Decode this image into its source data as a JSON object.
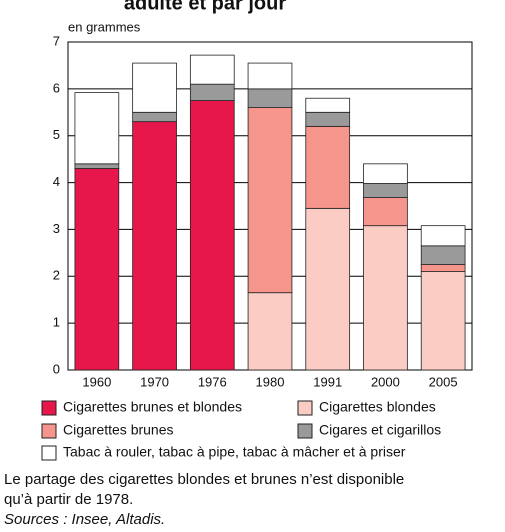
{
  "chart_data": {
    "type": "stacked_bar",
    "title": "adulte et par jour",
    "y_label": "en grammes",
    "categories": [
      "1960",
      "1970",
      "1976",
      "1980",
      "1991",
      "2000",
      "2005"
    ],
    "series": [
      {
        "name": "Cigarettes brunes et blondes",
        "color": "#e8174b",
        "values": [
          4.3,
          5.3,
          5.75,
          null,
          null,
          null,
          null
        ]
      },
      {
        "name": "Cigarettes blondes",
        "color": "#fbccc3",
        "values": [
          null,
          null,
          null,
          1.65,
          3.45,
          3.08,
          2.1
        ]
      },
      {
        "name": "Cigarettes brunes",
        "color": "#f5958b",
        "values": [
          null,
          null,
          null,
          3.95,
          1.75,
          0.6,
          0.15
        ]
      },
      {
        "name": "Cigares et cigarillos",
        "color": "#9a9a9a",
        "values": [
          0.1,
          0.2,
          0.35,
          0.4,
          0.3,
          0.3,
          0.4
        ]
      },
      {
        "name": "Tabac à rouler, tabac à pipe, tabac à mâcher et à priser",
        "color": "#ffffff",
        "values": [
          1.52,
          1.05,
          0.62,
          0.55,
          0.3,
          0.42,
          0.43
        ]
      }
    ],
    "ylim": [
      0,
      7
    ],
    "yticks": [
      0,
      1,
      2,
      3,
      4,
      5,
      6,
      7
    ],
    "grid": true,
    "notes": [
      "Le partage des cigarettes blondes et brunes n’est disponible",
      "qu’à partir de 1978."
    ],
    "source": "Sources : Insee, Altadis."
  }
}
